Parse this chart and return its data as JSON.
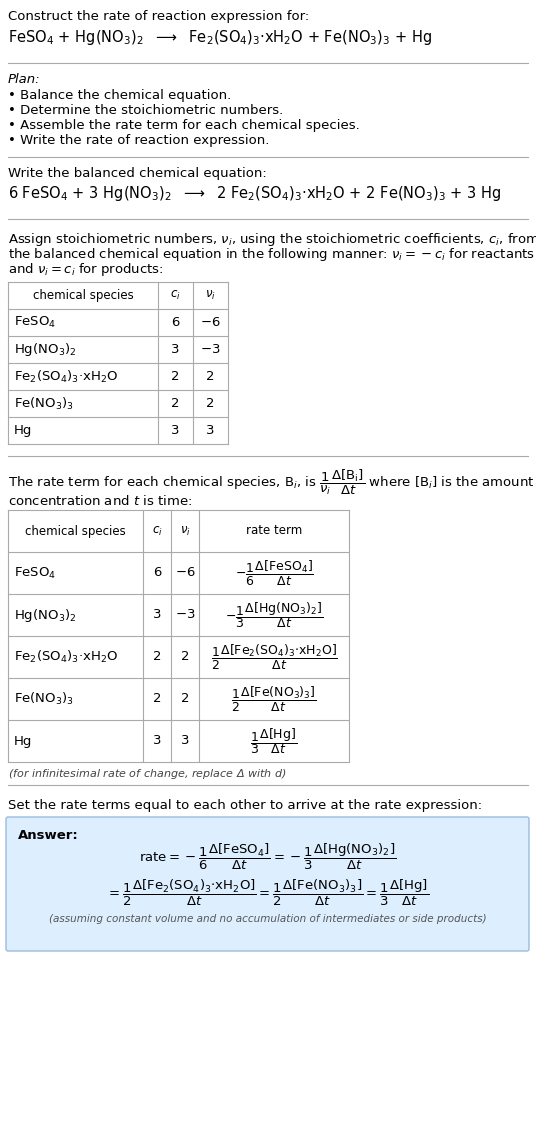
{
  "bg_color": "#ffffff",
  "title_line1": "Construct the rate of reaction expression for:",
  "reaction_unbalanced": "FeSO$_4$ + Hg(NO$_3$)$_2$  $\\longrightarrow$  Fe$_2$(SO$_4$)$_3$·xH$_2$O + Fe(NO$_3$)$_3$ + Hg",
  "plan_header": "Plan:",
  "plan_items": [
    "• Balance the chemical equation.",
    "• Determine the stoichiometric numbers.",
    "• Assemble the rate term for each chemical species.",
    "• Write the rate of reaction expression."
  ],
  "balanced_header": "Write the balanced chemical equation:",
  "reaction_balanced": "6 FeSO$_4$ + 3 Hg(NO$_3$)$_2$  $\\longrightarrow$  2 Fe$_2$(SO$_4$)$_3$·xH$_2$O + 2 Fe(NO$_3$)$_3$ + 3 Hg",
  "assign_text_lines": [
    "Assign stoichiometric numbers, $\\nu_i$, using the stoichiometric coefficients, $c_i$, from",
    "the balanced chemical equation in the following manner: $\\nu_i = -c_i$ for reactants",
    "and $\\nu_i = c_i$ for products:"
  ],
  "table1_headers": [
    "chemical species",
    "$c_i$",
    "$\\nu_i$"
  ],
  "table1_rows": [
    [
      "FeSO$_4$",
      "6",
      "$-6$"
    ],
    [
      "Hg(NO$_3$)$_2$",
      "3",
      "$-3$"
    ],
    [
      "Fe$_2$(SO$_4$)$_3$·xH$_2$O",
      "2",
      "2"
    ],
    [
      "Fe(NO$_3$)$_3$",
      "2",
      "2"
    ],
    [
      "Hg",
      "3",
      "3"
    ]
  ],
  "rate_term_line1": "The rate term for each chemical species, B$_i$, is $\\dfrac{1}{\\nu_i}\\dfrac{\\Delta[\\mathrm{B_i}]}{\\Delta t}$ where [B$_i$] is the amount",
  "rate_term_line2": "concentration and $t$ is time:",
  "table2_headers": [
    "chemical species",
    "$c_i$",
    "$\\nu_i$",
    "rate term"
  ],
  "table2_rows": [
    [
      "FeSO$_4$",
      "6",
      "$-6$",
      "$-\\dfrac{1}{6}\\dfrac{\\Delta[\\mathrm{FeSO_4}]}{\\Delta t}$"
    ],
    [
      "Hg(NO$_3$)$_2$",
      "3",
      "$-3$",
      "$-\\dfrac{1}{3}\\dfrac{\\Delta[\\mathrm{Hg(NO_3)_2}]}{\\Delta t}$"
    ],
    [
      "Fe$_2$(SO$_4$)$_3$·xH$_2$O",
      "2",
      "2",
      "$\\dfrac{1}{2}\\dfrac{\\Delta[\\mathrm{Fe_2(SO_4)_3{\\cdot}xH_2O}]}{\\Delta t}$"
    ],
    [
      "Fe(NO$_3$)$_3$",
      "2",
      "2",
      "$\\dfrac{1}{2}\\dfrac{\\Delta[\\mathrm{Fe(NO_3)_3}]}{\\Delta t}$"
    ],
    [
      "Hg",
      "3",
      "3",
      "$\\dfrac{1}{3}\\dfrac{\\Delta[\\mathrm{Hg}]}{\\Delta t}$"
    ]
  ],
  "infinitesimal_note": "(for infinitesimal rate of change, replace Δ with $d$)",
  "set_equal_text": "Set the rate terms equal to each other to arrive at the rate expression:",
  "answer_label": "Answer:",
  "answer_rate_line1": "$\\mathrm{rate} = -\\dfrac{1}{6}\\dfrac{\\Delta[\\mathrm{FeSO_4}]}{\\Delta t} = -\\dfrac{1}{3}\\dfrac{\\Delta[\\mathrm{Hg(NO_3)_2}]}{\\Delta t}$",
  "answer_rate_line2": "$= \\dfrac{1}{2}\\dfrac{\\Delta[\\mathrm{Fe_2(SO_4)_3{\\cdot}xH_2O}]}{\\Delta t} = \\dfrac{1}{2}\\dfrac{\\Delta[\\mathrm{Fe(NO_3)_3}]}{\\Delta t} = \\dfrac{1}{3}\\dfrac{\\Delta[\\mathrm{Hg}]}{\\Delta t}$",
  "answer_footnote": "(assuming constant volume and no accumulation of intermediates or side products)"
}
